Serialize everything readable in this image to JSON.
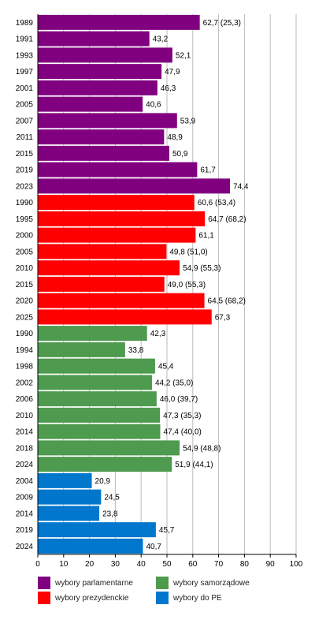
{
  "chart_data": {
    "type": "bar",
    "orientation": "horizontal",
    "xlim": [
      0,
      100
    ],
    "x_ticks": [
      "0",
      "10",
      "20",
      "30",
      "40",
      "50",
      "60",
      "70",
      "80",
      "90",
      "100"
    ],
    "grid": true,
    "legend_placement": "bottom",
    "series": [
      {
        "name": "wybory parlamentarne",
        "color": "#800080",
        "values": [
          {
            "year": "1989",
            "value": 62.7,
            "label": "62,7 (25,3)"
          },
          {
            "year": "1991",
            "value": 43.2,
            "label": "43,2"
          },
          {
            "year": "1993",
            "value": 52.1,
            "label": "52,1"
          },
          {
            "year": "1997",
            "value": 47.9,
            "label": "47,9"
          },
          {
            "year": "2001",
            "value": 46.3,
            "label": "46,3"
          },
          {
            "year": "2005",
            "value": 40.6,
            "label": "40,6"
          },
          {
            "year": "2007",
            "value": 53.9,
            "label": "53,9"
          },
          {
            "year": "2011",
            "value": 48.9,
            "label": "48,9"
          },
          {
            "year": "2015",
            "value": 50.9,
            "label": "50,9"
          },
          {
            "year": "2019",
            "value": 61.7,
            "label": "61,7"
          },
          {
            "year": "2023",
            "value": 74.4,
            "label": "74,4"
          }
        ]
      },
      {
        "name": "wybory prezydenckie",
        "color": "#ff0000",
        "values": [
          {
            "year": "1990",
            "value": 60.6,
            "label": "60,6 (53,4)"
          },
          {
            "year": "1995",
            "value": 64.7,
            "label": "64,7 (68,2)"
          },
          {
            "year": "2000",
            "value": 61.1,
            "label": "61,1"
          },
          {
            "year": "2005",
            "value": 49.8,
            "label": "49,8 (51,0)"
          },
          {
            "year": "2010",
            "value": 54.9,
            "label": "54,9 (55,3)"
          },
          {
            "year": "2015",
            "value": 49.0,
            "label": "49,0 (55,3)"
          },
          {
            "year": "2020",
            "value": 64.5,
            "label": "64,5 (68,2)"
          },
          {
            "year": "2025",
            "value": 67.3,
            "label": "67,3"
          }
        ]
      },
      {
        "name": "wybory samorządowe",
        "color": "#4e9a4e",
        "values": [
          {
            "year": "1990",
            "value": 42.3,
            "label": "42,3"
          },
          {
            "year": "1994",
            "value": 33.8,
            "label": "33,8"
          },
          {
            "year": "1998",
            "value": 45.4,
            "label": "45,4"
          },
          {
            "year": "2002",
            "value": 44.2,
            "label": "44,2 (35,0)"
          },
          {
            "year": "2006",
            "value": 46.0,
            "label": "46,0 (39,7)"
          },
          {
            "year": "2010",
            "value": 47.3,
            "label": "47,3 (35,3)"
          },
          {
            "year": "2014",
            "value": 47.4,
            "label": "47,4 (40,0)"
          },
          {
            "year": "2018",
            "value": 54.9,
            "label": "54,9 (48,8)"
          },
          {
            "year": "2024",
            "value": 51.9,
            "label": "51,9 (44,1)"
          }
        ]
      },
      {
        "name": "wybory do PE",
        "color": "#0077cc",
        "values": [
          {
            "year": "2004",
            "value": 20.9,
            "label": "20,9"
          },
          {
            "year": "2009",
            "value": 24.5,
            "label": "24,5"
          },
          {
            "year": "2014",
            "value": 23.8,
            "label": "23,8"
          },
          {
            "year": "2019",
            "value": 45.7,
            "label": "45,7"
          },
          {
            "year": "2024",
            "value": 40.7,
            "label": "40,7"
          }
        ]
      }
    ]
  },
  "legend": [
    {
      "label": "wybory parlamentarne",
      "color": "#800080"
    },
    {
      "label": "wybory samorządowe",
      "color": "#4e9a4e"
    },
    {
      "label": "wybory prezydenckie",
      "color": "#ff0000"
    },
    {
      "label": "wybory do PE",
      "color": "#0077cc"
    }
  ]
}
